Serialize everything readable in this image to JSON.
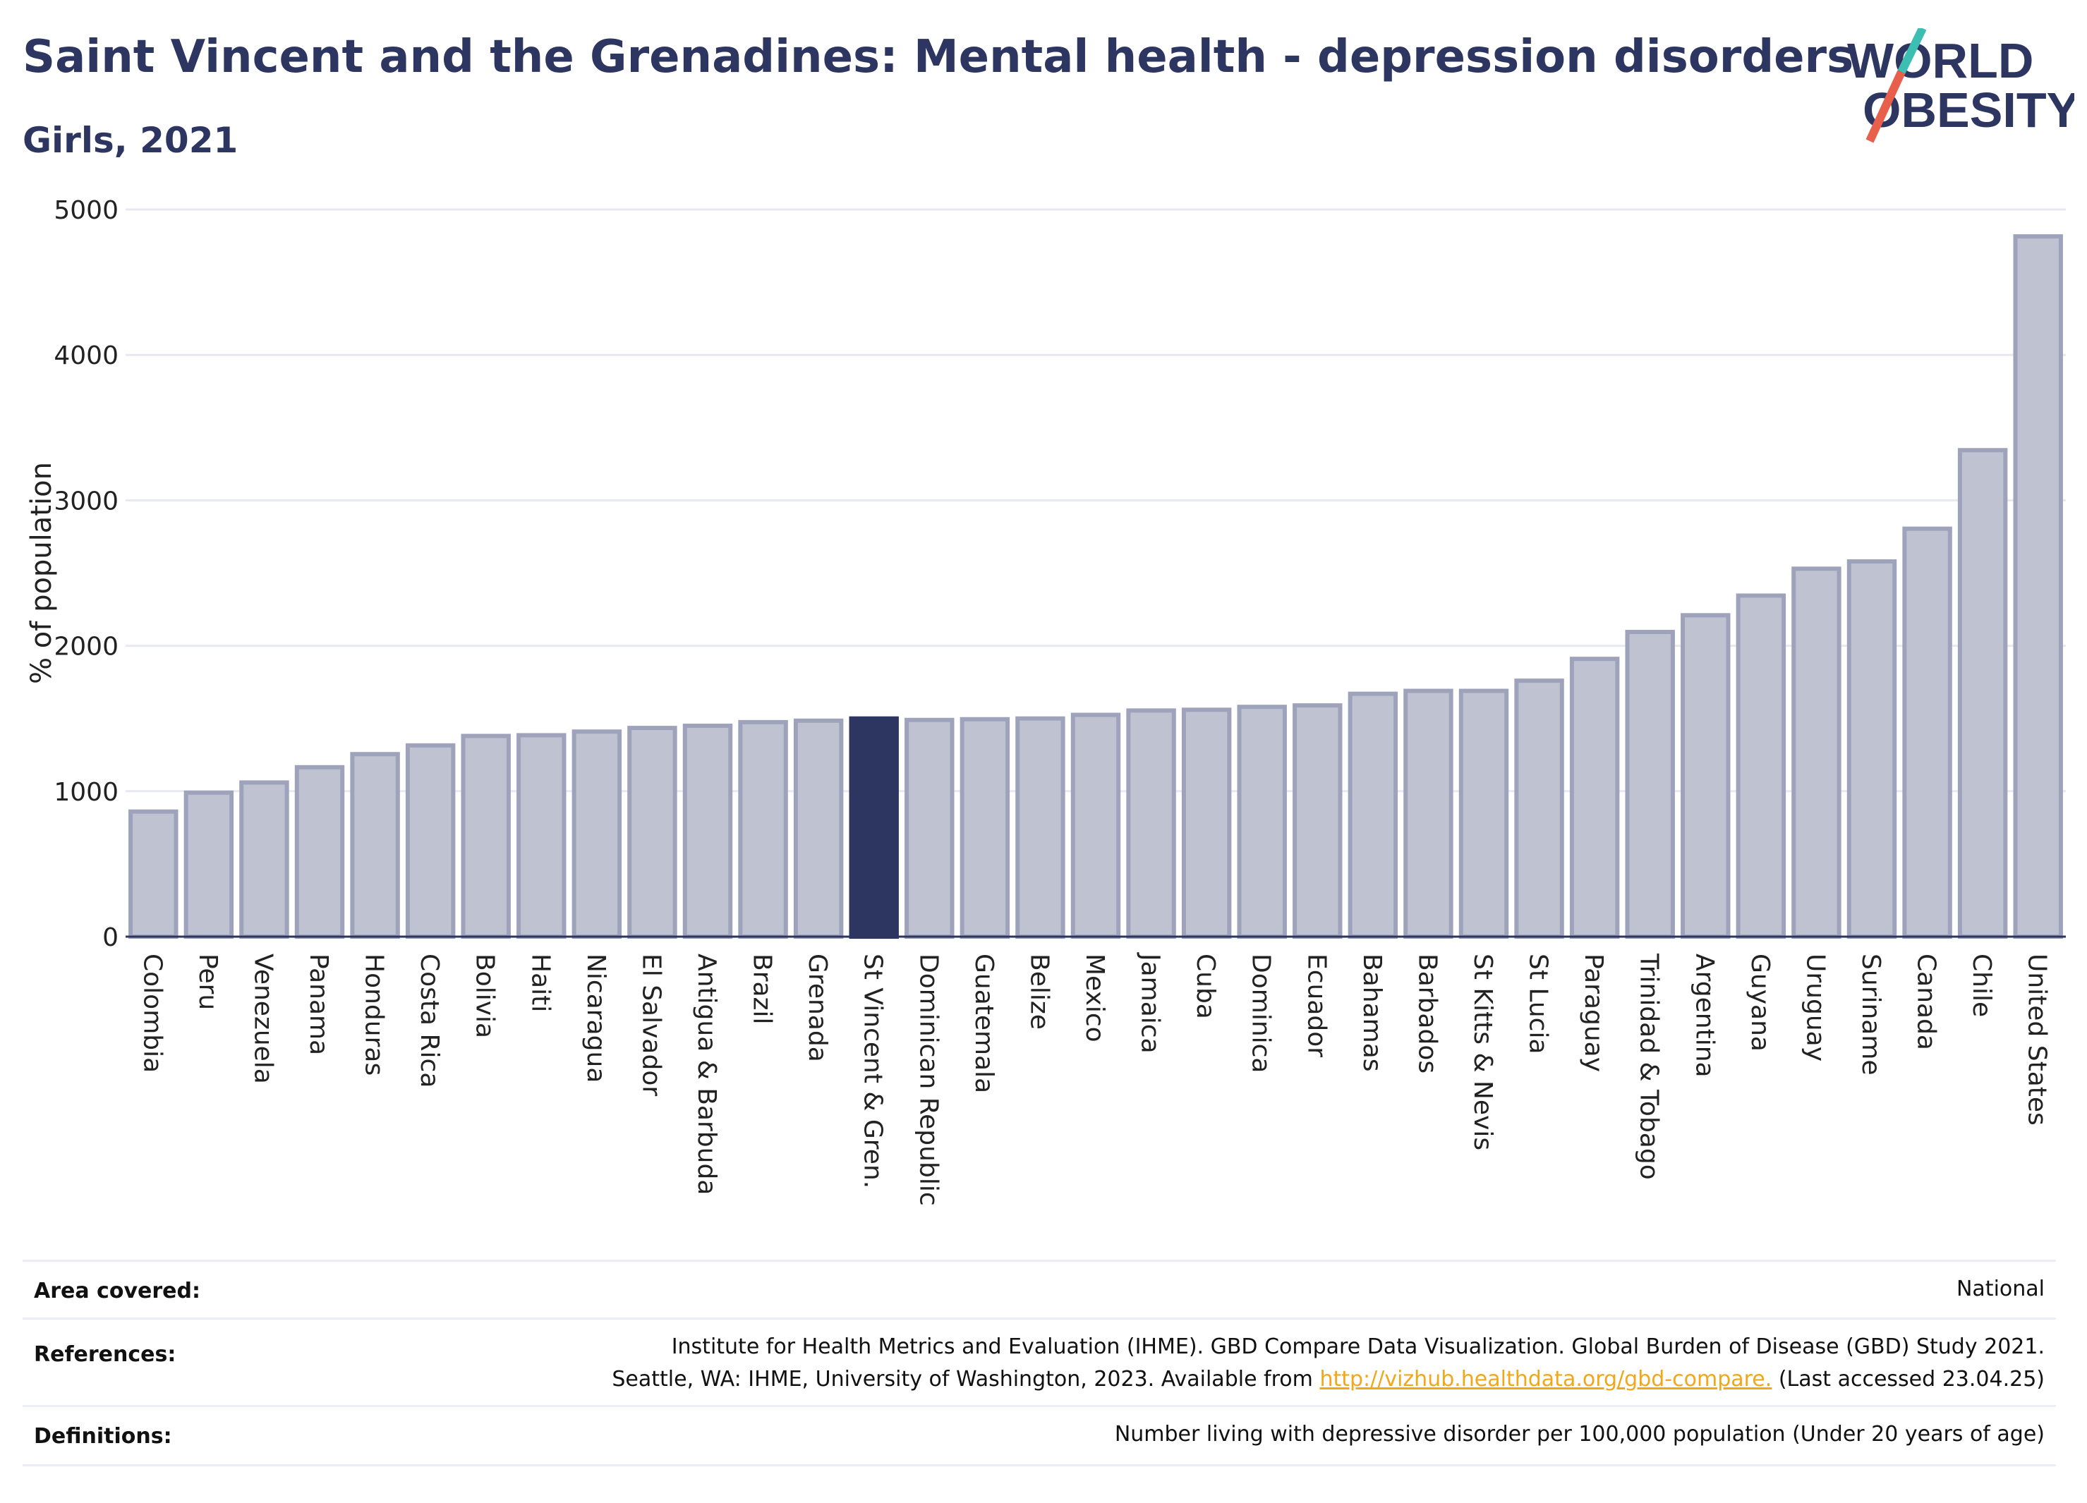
{
  "header": {
    "title": "Saint Vincent and the Grenadines: Mental health - depression disorders",
    "subtitle": "Girls, 2021"
  },
  "logo": {
    "line1": "WORLD",
    "line2": "OBESITY",
    "accent_teal": "#3cbfb2",
    "accent_coral": "#e8604c",
    "text_color": "#2d3661"
  },
  "colors": {
    "bar": "#bfc2d1",
    "bar_stroke": "#9ea3bb",
    "highlight": "#2d3661",
    "grid": "#e8e9f0",
    "axis": "#2d3661"
  },
  "chart_data": {
    "type": "bar",
    "ylabel": "% of population",
    "ylim": [
      0,
      5000
    ],
    "yticks": [
      0,
      1000,
      2000,
      3000,
      4000,
      5000
    ],
    "grid": true,
    "highlight": "St Vincent & Gren.",
    "categories": [
      "Colombia",
      "Peru",
      "Venezuela",
      "Panama",
      "Honduras",
      "Costa Rica",
      "Bolivia",
      "Haiti",
      "Nicaragua",
      "El Salvador",
      "Antigua & Barbuda",
      "Brazil",
      "Grenada",
      "St Vincent & Gren.",
      "Dominican Republic",
      "Guatemala",
      "Belize",
      "Mexico",
      "Jamaica",
      "Cuba",
      "Dominica",
      "Ecuador",
      "Bahamas",
      "Barbados",
      "St Kitts & Nevis",
      "St Lucia",
      "Paraguay",
      "Trinidad & Tobago",
      "Argentina",
      "Guyana",
      "Uruguay",
      "Suriname",
      "Canada",
      "Chile",
      "United States"
    ],
    "values": [
      860,
      990,
      1060,
      1165,
      1255,
      1315,
      1380,
      1385,
      1410,
      1435,
      1450,
      1475,
      1485,
      1500,
      1490,
      1495,
      1500,
      1525,
      1555,
      1560,
      1580,
      1590,
      1670,
      1690,
      1690,
      1760,
      1910,
      2095,
      2210,
      2345,
      2530,
      2580,
      2805,
      3345,
      4815
    ]
  },
  "info": {
    "area_label": "Area covered:",
    "area_value": "National",
    "references_label": "References:",
    "references_line1": "Institute for Health Metrics and Evaluation (IHME). GBD Compare Data Visualization. Global Burden of Disease (GBD) Study 2021.",
    "references_line2_pre": "Seattle, WA: IHME, University of Washington, 2023. Available from",
    "references_link": "http://vizhub.healthdata.org/gbd-compare.",
    "references_line2_post": "(Last accessed 23.04.25)",
    "definitions_label": "Definitions:",
    "definitions_value": "Number living with depressive disorder per 100,000 population (Under 20 years of age)"
  }
}
